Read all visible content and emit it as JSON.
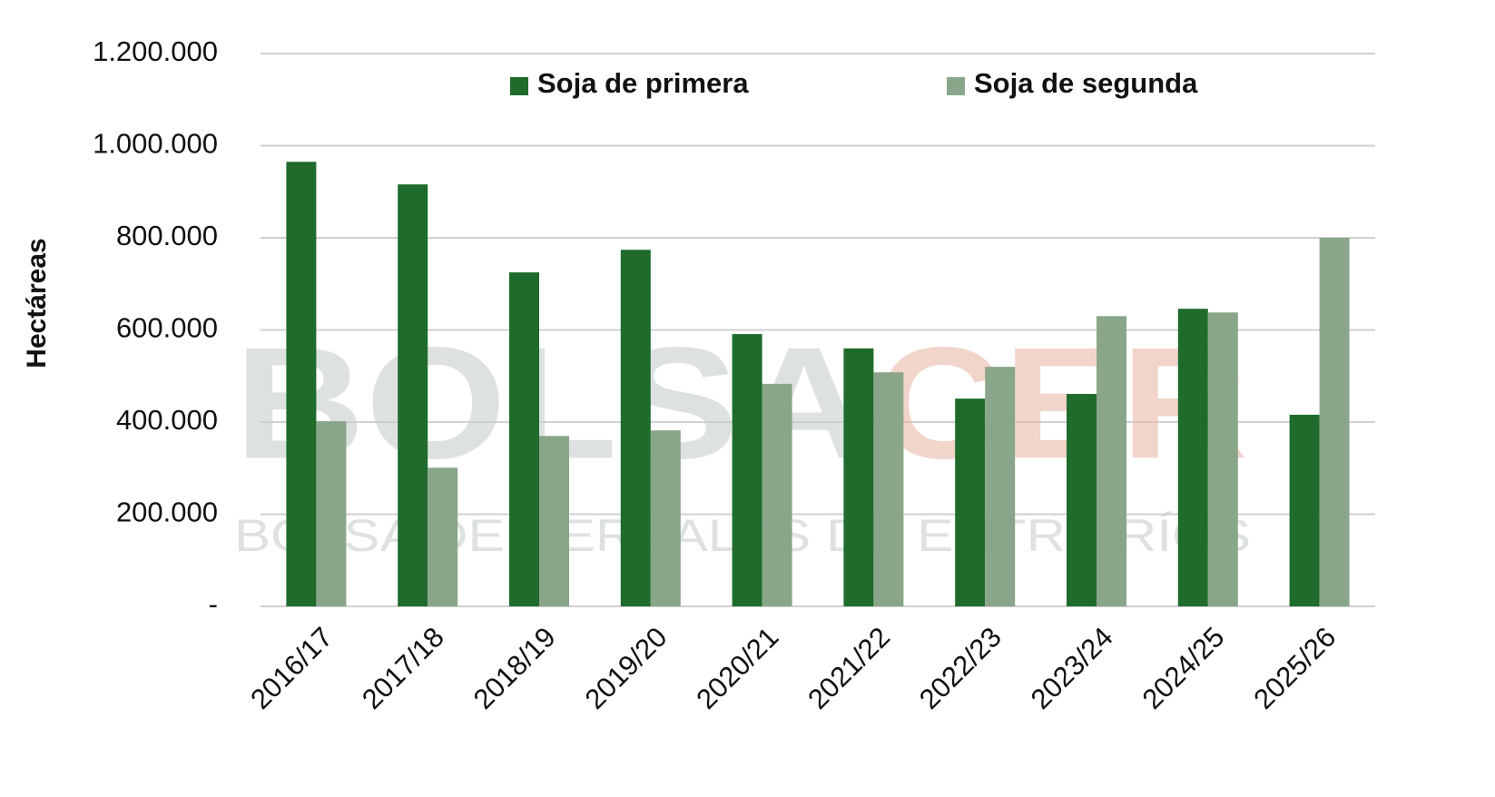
{
  "chart_data": {
    "type": "bar",
    "y_label": "Hectáreas",
    "watermark": [
      "BOLSA",
      "CER"
    ],
    "watermark_subtitle": "BOLSA DE CEREALES DE ENTRE RÍOS",
    "categories": [
      "2016/17",
      "2017/18",
      "2018/19",
      "2019/20",
      "2020/21",
      "2021/22",
      "2022/23",
      "2023/24",
      "2024/25",
      "2025/26"
    ],
    "series": [
      {
        "name": "Soja de primera",
        "color": "#1e6b2c",
        "values": [
          965000,
          916000,
          725000,
          774000,
          591000,
          560000,
          451000,
          461000,
          646000,
          416000
        ]
      },
      {
        "name": "Soja de segunda",
        "color": "#8aa68a",
        "values": [
          402000,
          301000,
          370000,
          382000,
          483000,
          508000,
          520000,
          630000,
          638000,
          800000
        ]
      }
    ],
    "ylim": [
      0,
      1200000
    ],
    "yticks": [
      {
        "value": 0,
        "label": "-"
      },
      {
        "value": 200000,
        "label": "200.000"
      },
      {
        "value": 400000,
        "label": "400.000"
      },
      {
        "value": 600000,
        "label": "600.000"
      },
      {
        "value": 800000,
        "label": "800.000"
      },
      {
        "value": 1000000,
        "label": "1.000.000"
      },
      {
        "value": 1200000,
        "label": "1.200.000"
      }
    ],
    "grid": true,
    "legend": "top"
  }
}
